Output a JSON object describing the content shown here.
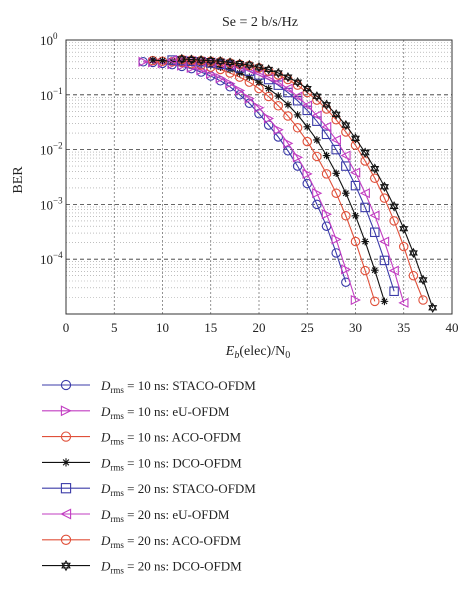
{
  "chart_data": {
    "type": "line",
    "title": "Se = 2 b/s/Hz",
    "ylabel": "BER",
    "xlabel_parts": {
      "main": "E",
      "sub": "b",
      "rest": "(elec)/N",
      "sub2": "0"
    },
    "xlim": [
      0,
      40
    ],
    "ylim": [
      1e-05,
      1
    ],
    "yscale": "log",
    "xticks": [
      0,
      5,
      10,
      15,
      20,
      25,
      30,
      35,
      40
    ],
    "yticks": [
      {
        "exp": "0",
        "value": 1
      },
      {
        "exp": "−1",
        "value": 0.1
      },
      {
        "exp": "−2",
        "value": 0.01
      },
      {
        "exp": "−3",
        "value": 0.001
      },
      {
        "exp": "−4",
        "value": 0.0001
      }
    ],
    "ytick_base": "10",
    "grid": true,
    "legend_position": "below",
    "x": [
      0,
      1,
      2,
      3,
      4,
      5,
      6,
      7,
      8,
      9,
      10,
      11,
      12,
      13,
      14,
      15,
      16,
      17,
      18,
      19,
      20,
      21,
      22,
      23,
      24,
      25,
      26,
      27,
      28,
      29,
      30,
      31,
      32,
      33,
      34,
      35,
      36,
      37,
      38
    ],
    "series": [
      {
        "legend_d": "D",
        "legend_sub": "rms",
        "legend_rest": " = 10 ns: STACO-OFDM",
        "color": "#3b3ba8",
        "marker": "circle",
        "values": [
          0.4,
          0.39,
          0.375,
          0.355,
          0.33,
          0.3,
          0.26,
          0.22,
          0.18,
          0.14,
          0.1,
          0.07,
          0.045,
          0.028,
          0.017,
          0.0095,
          0.005,
          0.0024,
          0.001,
          0.0004,
          0.00013,
          3.8e-05,
          null,
          null,
          null,
          null,
          null,
          null,
          null,
          null,
          null,
          null,
          null,
          null,
          null,
          null,
          null,
          null,
          null
        ],
        "x_offset": 8
      },
      {
        "legend_d": "D",
        "legend_sub": "rms",
        "legend_rest": " = 10 ns: eU-OFDM",
        "color": "#c23dc2",
        "marker": "tri-right",
        "values": [
          0.4,
          0.39,
          0.375,
          0.36,
          0.34,
          0.31,
          0.28,
          0.24,
          0.2,
          0.16,
          0.12,
          0.085,
          0.058,
          0.037,
          0.023,
          0.013,
          0.0072,
          0.0036,
          0.0016,
          0.00066,
          0.00023,
          6.5e-05,
          1.8e-05,
          null,
          null,
          null,
          null,
          null,
          null,
          null,
          null,
          null,
          null,
          null,
          null,
          null,
          null,
          null,
          null
        ],
        "x_offset": 8
      },
      {
        "legend_d": "D",
        "legend_sub": "rms",
        "legend_rest": " = 10 ns: ACO-OFDM",
        "color": "#e0503a",
        "marker": "circle",
        "values": [
          0.42,
          0.41,
          0.4,
          0.39,
          0.37,
          0.35,
          0.32,
          0.29,
          0.25,
          0.21,
          0.17,
          0.13,
          0.093,
          0.063,
          0.041,
          0.025,
          0.014,
          0.0075,
          0.0036,
          0.0016,
          0.00062,
          0.00021,
          6.2e-05,
          1.7e-05,
          null,
          null,
          null,
          null,
          null,
          null,
          null,
          null,
          null,
          null,
          null,
          null,
          null,
          null,
          null
        ],
        "x_offset": 9
      },
      {
        "legend_d": "D",
        "legend_sub": "rms",
        "legend_rest": " = 10 ns: DCO-OFDM",
        "color": "#111111",
        "marker": "asterisk",
        "values": [
          0.43,
          0.42,
          0.41,
          0.4,
          0.39,
          0.37,
          0.35,
          0.32,
          0.29,
          0.25,
          0.21,
          0.17,
          0.13,
          0.095,
          0.066,
          0.043,
          0.026,
          0.015,
          0.0078,
          0.0037,
          0.0016,
          0.00062,
          0.00021,
          6.3e-05,
          1.7e-05,
          null,
          null,
          null,
          null,
          null,
          null,
          null,
          null,
          null,
          null,
          null,
          null,
          null,
          null
        ],
        "x_offset": 9
      },
      {
        "legend_d": "D",
        "legend_sub": "rms",
        "legend_rest": " = 20 ns: STACO-OFDM",
        "color": "#3b3ba8",
        "marker": "square",
        "values": [
          0.43,
          0.42,
          0.41,
          0.4,
          0.38,
          0.36,
          0.34,
          0.31,
          0.27,
          0.23,
          0.19,
          0.15,
          0.11,
          0.078,
          0.052,
          0.033,
          0.019,
          0.01,
          0.005,
          0.0022,
          0.00088,
          0.00031,
          9.5e-05,
          2.6e-05,
          null,
          null,
          null,
          null,
          null,
          null,
          null,
          null,
          null,
          null,
          null,
          null,
          null,
          null,
          null
        ],
        "x_offset": 11
      },
      {
        "legend_d": "D",
        "legend_sub": "rms",
        "legend_rest": " = 20 ns: eU-OFDM",
        "color": "#c23dc2",
        "marker": "tri-left",
        "values": [
          0.43,
          0.42,
          0.41,
          0.4,
          0.39,
          0.37,
          0.35,
          0.32,
          0.29,
          0.25,
          0.21,
          0.17,
          0.13,
          0.093,
          0.064,
          0.042,
          0.026,
          0.015,
          0.0078,
          0.0038,
          0.0016,
          0.00063,
          0.00021,
          6.2e-05,
          1.6e-05,
          null,
          null,
          null,
          null,
          null,
          null,
          null,
          null,
          null,
          null,
          null,
          null,
          null,
          null
        ],
        "x_offset": 11
      },
      {
        "legend_d": "D",
        "legend_sub": "rms",
        "legend_rest": " = 20 ns: ACO-OFDM",
        "color": "#e0503a",
        "marker": "circle",
        "values": [
          0.44,
          0.43,
          0.42,
          0.41,
          0.4,
          0.38,
          0.36,
          0.34,
          0.31,
          0.27,
          0.23,
          0.19,
          0.15,
          0.11,
          0.08,
          0.055,
          0.035,
          0.021,
          0.012,
          0.0062,
          0.003,
          0.0013,
          0.0005,
          0.00017,
          5e-05,
          1.8e-05,
          null,
          null,
          null,
          null,
          null,
          null,
          null,
          null,
          null,
          null,
          null,
          null,
          null
        ],
        "x_offset": 12
      },
      {
        "legend_d": "D",
        "legend_sub": "rms",
        "legend_rest": " = 20 ns: DCO-OFDM",
        "color": "#111111",
        "marker": "star",
        "values": [
          0.45,
          0.44,
          0.43,
          0.42,
          0.41,
          0.39,
          0.37,
          0.35,
          0.32,
          0.29,
          0.25,
          0.21,
          0.17,
          0.13,
          0.094,
          0.066,
          0.044,
          0.028,
          0.016,
          0.0088,
          0.0045,
          0.0021,
          0.00092,
          0.00036,
          0.00013,
          4.2e-05,
          1.3e-05,
          null,
          null,
          null,
          null,
          null,
          null,
          null,
          null,
          null,
          null,
          null,
          null
        ],
        "x_offset": 12
      }
    ]
  }
}
